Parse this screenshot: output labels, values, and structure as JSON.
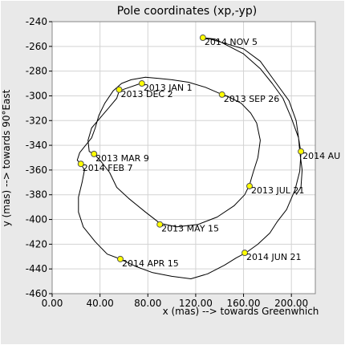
{
  "chart_data": {
    "type": "line",
    "title": "Pole coordinates (xp,-yp)",
    "xlabel": "x (mas) --> towards Greenwhich",
    "ylabel": "y (mas) --> towards 90°East",
    "xlim": [
      0,
      220
    ],
    "ylim": [
      -460,
      -240
    ],
    "x_ticks": [
      0,
      40,
      80,
      120,
      160,
      200
    ],
    "x_tick_labels": [
      "0.00",
      "40.00",
      "80.00",
      "120.00",
      "160.00",
      "200.00"
    ],
    "y_ticks": [
      -460,
      -440,
      -420,
      -400,
      -380,
      -360,
      -340,
      -320,
      -300,
      -280,
      -260,
      -240
    ],
    "y_tick_labels": [
      "-460",
      "-440",
      "-420",
      "-400",
      "-380",
      "-360",
      "-340",
      "-320",
      "-300",
      "-280",
      "-260",
      "-240"
    ],
    "grid": true,
    "colors": {
      "line": "#000000",
      "marker_fill": "#ffff00",
      "marker_stroke": "#555555",
      "grid": "#d3d3d3",
      "plot_bg": "#ffffff",
      "page_bg": "#e9e9e9"
    },
    "series": [
      {
        "path": [
          [
            74,
            -290
          ],
          [
            62,
            -294
          ],
          [
            56,
            -296
          ],
          [
            54,
            -302
          ],
          [
            47,
            -310
          ],
          [
            40,
            -318
          ],
          [
            33,
            -326
          ],
          [
            30,
            -336
          ],
          [
            31,
            -345
          ],
          [
            35,
            -347
          ],
          [
            40,
            -352
          ],
          [
            48,
            -362
          ],
          [
            54,
            -374
          ],
          [
            64,
            -383
          ],
          [
            78,
            -394
          ],
          [
            90,
            -403
          ],
          [
            104,
            -406
          ],
          [
            122,
            -404
          ],
          [
            138,
            -398
          ],
          [
            152,
            -389
          ],
          [
            161,
            -380
          ],
          [
            165,
            -372
          ],
          [
            168,
            -362
          ],
          [
            172,
            -350
          ],
          [
            174,
            -336
          ],
          [
            171,
            -322
          ],
          [
            166,
            -314
          ],
          [
            158,
            -306
          ],
          [
            148,
            -301
          ],
          [
            140,
            -298
          ],
          [
            128,
            -293
          ],
          [
            114,
            -289
          ],
          [
            100,
            -287
          ],
          [
            90,
            -286
          ],
          [
            78,
            -285
          ],
          [
            66,
            -287
          ],
          [
            58,
            -290
          ],
          [
            51,
            -296
          ],
          [
            44,
            -306
          ],
          [
            39,
            -316
          ],
          [
            36,
            -326
          ],
          [
            33,
            -334
          ],
          [
            28,
            -340
          ],
          [
            23,
            -346
          ],
          [
            21,
            -352
          ],
          [
            24,
            -355
          ],
          [
            27,
            -360
          ],
          [
            25,
            -370
          ],
          [
            22,
            -382
          ],
          [
            22,
            -394
          ],
          [
            26,
            -406
          ],
          [
            36,
            -418
          ],
          [
            46,
            -428
          ],
          [
            57,
            -432
          ],
          [
            70,
            -438
          ],
          [
            84,
            -443
          ],
          [
            100,
            -446
          ],
          [
            116,
            -448
          ],
          [
            130,
            -444
          ],
          [
            144,
            -437
          ],
          [
            154,
            -431
          ],
          [
            162,
            -427
          ],
          [
            172,
            -420
          ],
          [
            182,
            -411
          ],
          [
            188,
            -402
          ],
          [
            196,
            -392
          ],
          [
            203,
            -376
          ],
          [
            207,
            -361
          ],
          [
            208,
            -346
          ],
          [
            206,
            -334
          ],
          [
            200,
            -318
          ],
          [
            193,
            -302
          ],
          [
            184,
            -290
          ],
          [
            174,
            -278
          ],
          [
            160,
            -266
          ],
          [
            146,
            -259
          ],
          [
            136,
            -254
          ],
          [
            126,
            -253
          ],
          [
            132,
            -254
          ],
          [
            146,
            -258
          ],
          [
            160,
            -262
          ],
          [
            174,
            -272
          ],
          [
            186,
            -288
          ],
          [
            198,
            -304
          ],
          [
            204,
            -320
          ],
          [
            206,
            -334
          ],
          [
            207,
            -345
          ],
          [
            209,
            -360
          ],
          [
            208,
            -374
          ],
          [
            204,
            -380
          ]
        ]
      }
    ],
    "labeled_points": [
      {
        "x": 126,
        "y": -253,
        "label": "2014 NOV 5"
      },
      {
        "x": 75,
        "y": -290,
        "label": "2013 JAN 1"
      },
      {
        "x": 56,
        "y": -295,
        "label": "2013 DEC 2"
      },
      {
        "x": 142,
        "y": -299,
        "label": "2013 SEP 26"
      },
      {
        "x": 35,
        "y": -347,
        "label": "2013 MAR 9"
      },
      {
        "x": 24,
        "y": -355,
        "label": "2014 FEB 7"
      },
      {
        "x": 208,
        "y": -345,
        "label": "2014 AU"
      },
      {
        "x": 165,
        "y": -373,
        "label": "2013 JUL 21"
      },
      {
        "x": 90,
        "y": -404,
        "label": "2013 MAY 15"
      },
      {
        "x": 57,
        "y": -432,
        "label": "2014 APR 15"
      },
      {
        "x": 161,
        "y": -427,
        "label": "2014 JUN 21"
      }
    ]
  }
}
